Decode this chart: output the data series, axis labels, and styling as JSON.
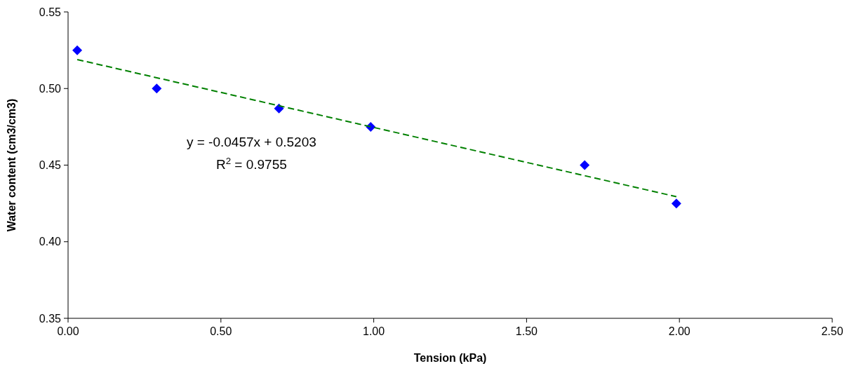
{
  "chart_data": {
    "type": "scatter",
    "xlabel": "Tension (kPa)",
    "ylabel": "Water content (cm3/cm3)",
    "xlim": [
      0,
      2.5
    ],
    "xticks": [
      {
        "value": 0,
        "label": "0.00"
      },
      {
        "value": 0.5,
        "label": "0.50"
      },
      {
        "value": 1,
        "label": "1.00"
      },
      {
        "value": 1.5,
        "label": "1.50"
      },
      {
        "value": 2,
        "label": "2.00"
      },
      {
        "value": 2.5,
        "label": "2.50"
      }
    ],
    "ylim": [
      0.35,
      0.55
    ],
    "yticks": [
      {
        "value": 0.35,
        "label": "0.35"
      },
      {
        "value": 0.4,
        "label": "0.40"
      },
      {
        "value": 0.45,
        "label": "0.45"
      },
      {
        "value": 0.5,
        "label": "0.50"
      },
      {
        "value": 0.55,
        "label": "0.55"
      }
    ],
    "grid": false,
    "series": [
      {
        "color": "#0000ff",
        "marker": "diamond",
        "x": [
          0.03,
          0.29,
          0.69,
          0.99,
          1.69,
          1.99
        ],
        "values": [
          0.525,
          0.5,
          0.487,
          0.475,
          0.45,
          0.425
        ]
      },
      {
        "type": "line",
        "color": "#008000",
        "marker": "none",
        "line_style": "dashed",
        "x": [
          0.03,
          1.99
        ],
        "values": [
          0.5189,
          0.4294
        ]
      }
    ],
    "annotations": [
      "y = -0.0457x + 0.5203",
      "R$^{2}$ = 0.9755"
    ]
  }
}
